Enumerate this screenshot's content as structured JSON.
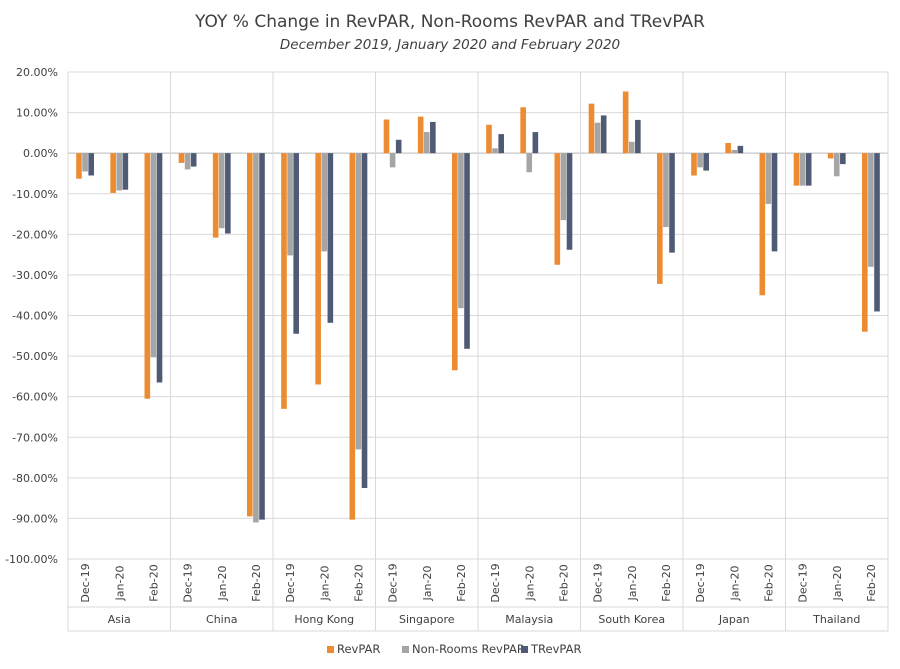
{
  "chart_data": {
    "type": "bar",
    "title": "YOY % Change in RevPAR, Non-Rooms RevPAR and TRevPAR",
    "subtitle": "December 2019, January 2020 and February 2020",
    "xlabel": "",
    "ylabel": "",
    "ylim": [
      -100,
      20
    ],
    "ytick_step": 10,
    "ytick_labels": [
      "20.00%",
      "10.00%",
      "0.00%",
      "-10.00%",
      "-20.00%",
      "-30.00%",
      "-40.00%",
      "-50.00%",
      "-60.00%",
      "-70.00%",
      "-80.00%",
      "-90.00%",
      "-100.00%"
    ],
    "grid": "horizontal",
    "legend_position": "bottom",
    "groups": [
      "Asia",
      "China",
      "Hong Kong",
      "Singapore",
      "Malaysia",
      "South Korea",
      "Japan",
      "Thailand"
    ],
    "months": [
      "Dec-19",
      "Jan-20",
      "Feb-20"
    ],
    "series": [
      {
        "name": "RevPAR",
        "color": "#ED8B30",
        "values": [
          [
            -6.3,
            -9.8,
            -60.5
          ],
          [
            -2.4,
            -20.8,
            -89.5
          ],
          [
            -63.0,
            -57.0,
            -90.3
          ],
          [
            8.3,
            9.0,
            -53.5
          ],
          [
            7.0,
            11.3,
            -27.5
          ],
          [
            12.2,
            15.2,
            -32.2
          ],
          [
            -5.5,
            2.5,
            -35.0
          ],
          [
            -8.0,
            -1.3,
            -44.0
          ]
        ]
      },
      {
        "name": "Non-Rooms RevPAR",
        "color": "#A5A5A5",
        "values": [
          [
            -4.5,
            -9.2,
            -50.3
          ],
          [
            -4.0,
            -18.5,
            -91.0
          ],
          [
            -25.2,
            -24.2,
            -73.0
          ],
          [
            -3.5,
            5.2,
            -38.2
          ],
          [
            1.2,
            -4.7,
            -16.5
          ],
          [
            7.5,
            2.8,
            -18.2
          ],
          [
            -3.5,
            0.8,
            -12.5
          ],
          [
            -8.0,
            -5.7,
            -28.0
          ]
        ]
      },
      {
        "name": "TRevPAR",
        "color": "#4F5A75",
        "values": [
          [
            -5.5,
            -9.0,
            -56.5
          ],
          [
            -3.3,
            -19.8,
            -90.3
          ],
          [
            -44.5,
            -41.8,
            -82.5
          ],
          [
            3.3,
            7.7,
            -48.2
          ],
          [
            4.7,
            5.2,
            -23.8
          ],
          [
            9.3,
            8.2,
            -24.5
          ],
          [
            -4.3,
            1.8,
            -24.2
          ],
          [
            -8.0,
            -2.7,
            -39.0
          ]
        ]
      }
    ]
  }
}
